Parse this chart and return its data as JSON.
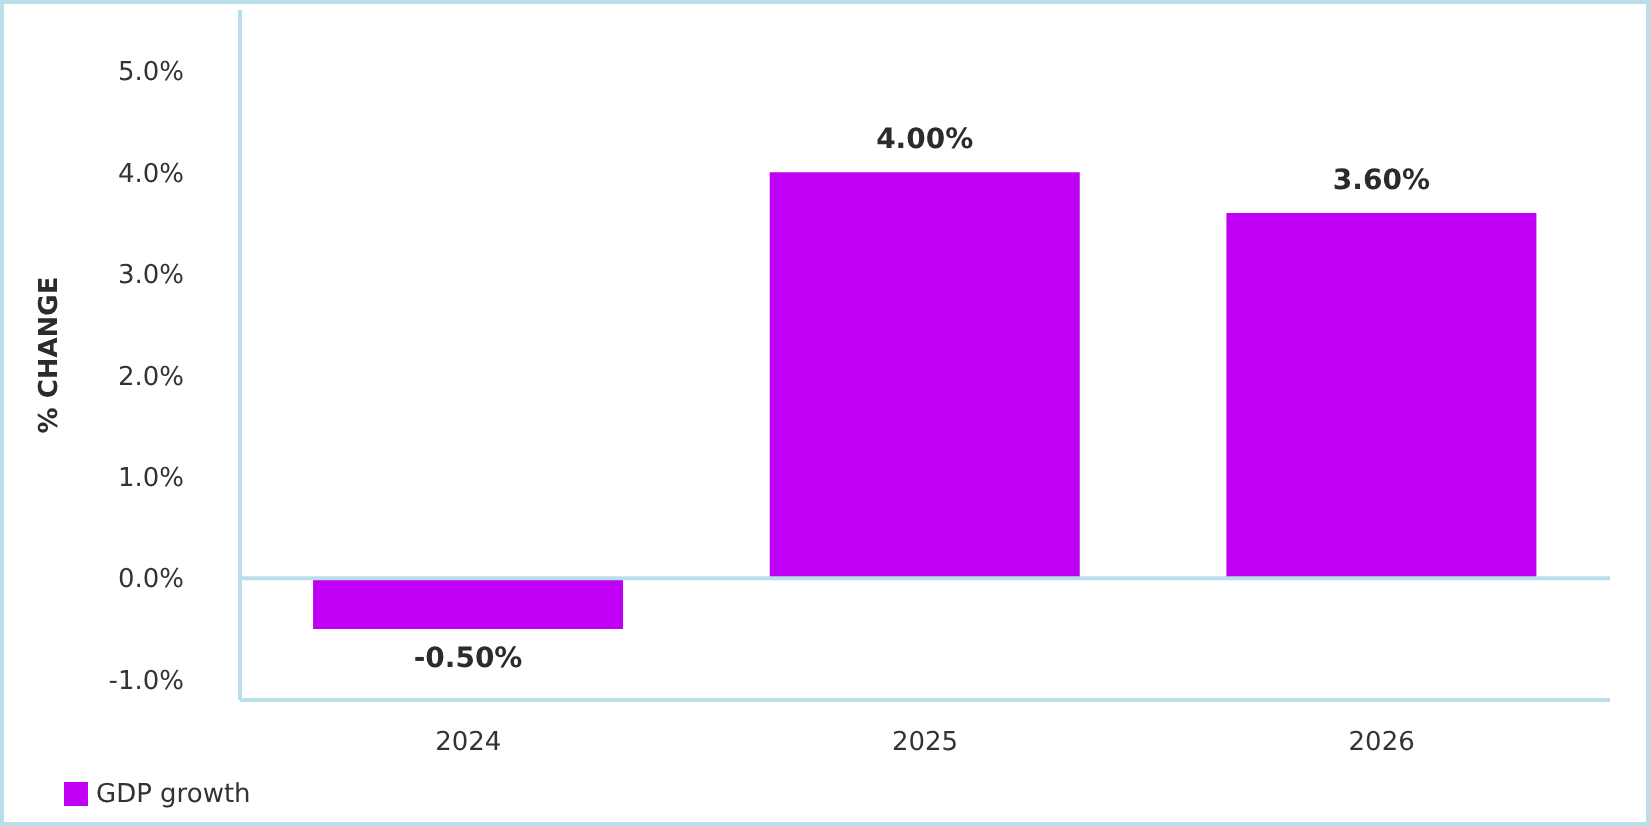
{
  "chart_data": {
    "type": "bar",
    "ylabel": "% CHANGE",
    "categories": [
      "2024",
      "2025",
      "2026"
    ],
    "series": [
      {
        "name": "GDP growth",
        "color": "#bf00f5",
        "values": [
          -0.5,
          4.0,
          3.6
        ],
        "value_labels": [
          "-0.50%",
          "4.00%",
          "3.60%"
        ]
      }
    ],
    "ylim": [
      -1.2,
      5.6
    ],
    "yticks": [
      {
        "value": -1,
        "label": "-1.0%"
      },
      {
        "value": 0,
        "label": "0.0%"
      },
      {
        "value": 1,
        "label": "1.0%"
      },
      {
        "value": 2,
        "label": "2.0%"
      },
      {
        "value": 3,
        "label": "3.0%"
      },
      {
        "value": 4,
        "label": "4.0%"
      },
      {
        "value": 5,
        "label": "5.0%"
      }
    ],
    "ref_lines": [
      {
        "axis": "y",
        "value": 0,
        "color": "#b9dfea"
      }
    ],
    "grid": false,
    "legend": "bottom left"
  }
}
